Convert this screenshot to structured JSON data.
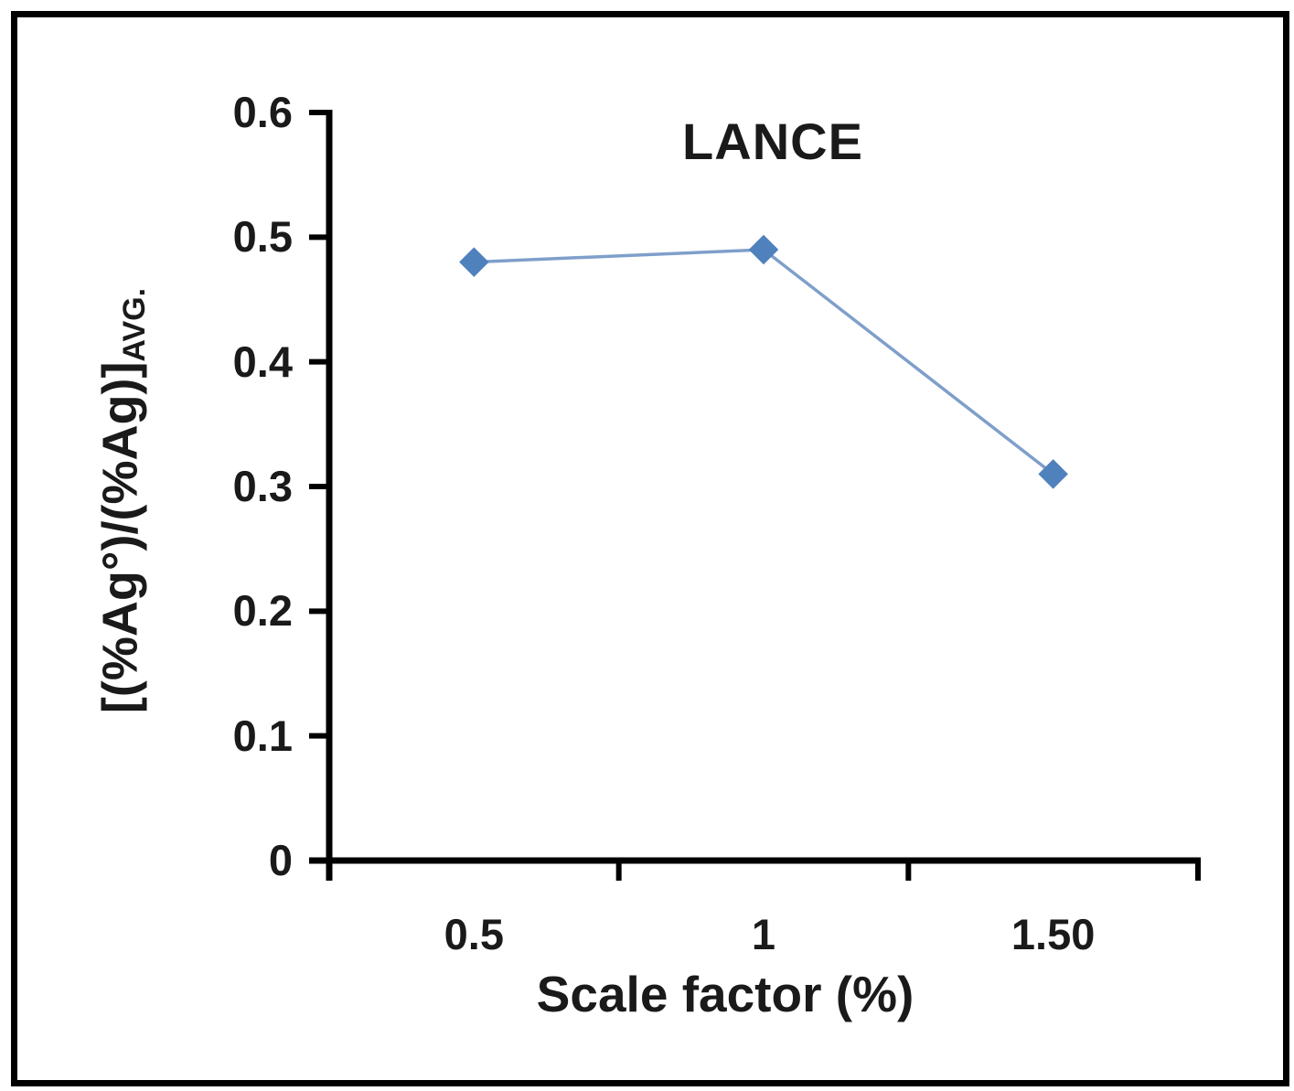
{
  "figure": {
    "background": "#ffffff",
    "frame_color": "#000000"
  },
  "chart_data": {
    "type": "line",
    "title": "LANCE",
    "xlabel": "Scale factor (%)",
    "ylabel_main": "[(%Ag°)/(%Ag)]",
    "ylabel_subscript": "AVG.",
    "categories": [
      "0.5",
      "1",
      "1.50"
    ],
    "series": [
      {
        "name": "LANCE",
        "values": [
          0.48,
          0.49,
          0.31
        ]
      }
    ],
    "ylim": [
      0,
      0.6
    ],
    "y_ticks": [
      0,
      0.1,
      0.2,
      0.3,
      0.4,
      0.5,
      0.6
    ],
    "y_tick_labels": [
      "0",
      "0.1",
      "0.2",
      "0.3",
      "0.4",
      "0.5",
      "0.6"
    ],
    "grid": false,
    "legend": "none",
    "marker": "diamond",
    "marker_color": "#4f81bd",
    "line_color": "#7f9fca",
    "axis_color": "#000000"
  }
}
